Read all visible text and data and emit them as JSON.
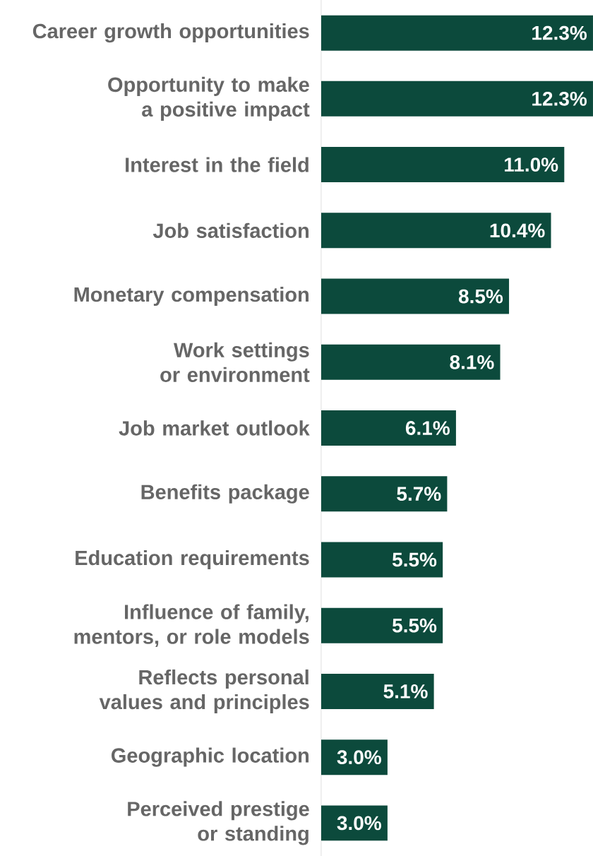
{
  "chart_data": {
    "type": "bar",
    "orientation": "horizontal",
    "categories": [
      "Career growth opportunities",
      "Opportunity to make a positive impact",
      "Interest in the field",
      "Job satisfaction",
      "Monetary compensation",
      "Work settings or environment",
      "Job market outlook",
      "Benefits package",
      "Education requirements",
      "Influence of family, mentors, or role models",
      "Reflects personal values and principles",
      "Geographic location",
      "Perceived prestige or standing"
    ],
    "values": [
      12.3,
      12.3,
      11.0,
      10.4,
      8.5,
      8.1,
      6.1,
      5.7,
      5.5,
      5.5,
      5.1,
      3.0,
      3.0
    ],
    "value_labels": [
      "12.3%",
      "12.3%",
      "11.0%",
      "10.4%",
      "8.5%",
      "8.1%",
      "6.1%",
      "5.7%",
      "5.5%",
      "5.5%",
      "5.1%",
      "3.0%",
      "3.0%"
    ],
    "color": "#0c4a3c"
  }
}
